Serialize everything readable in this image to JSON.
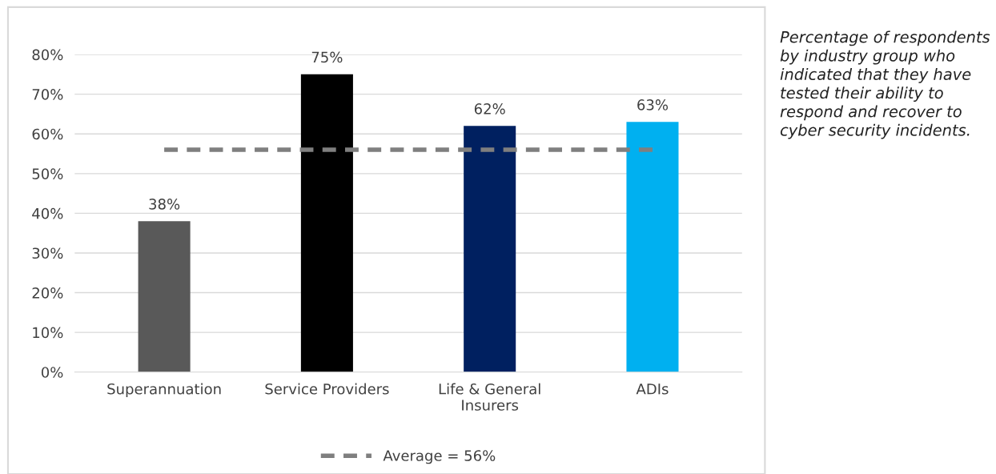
{
  "chart_data": {
    "type": "bar",
    "categories": [
      "Superannuation",
      "Service Providers",
      "Life & General\nInsurers",
      "ADIs"
    ],
    "series": [
      {
        "colors": [
          "#595959",
          "#000000",
          "#002060",
          "#00b0f0"
        ],
        "values": [
          38,
          75,
          62,
          63
        ],
        "value_labels": [
          "38%",
          "75%",
          "62%",
          "63%"
        ]
      },
      {
        "type": "line",
        "name": "Average = 56%",
        "color": "#7f7f7f",
        "values": [
          56,
          56,
          56,
          56
        ],
        "line_style": "dashed"
      }
    ],
    "ylim": [
      0,
      80
    ],
    "yticks": [
      {
        "value": 0,
        "label": "0%"
      },
      {
        "value": 10,
        "label": "10%"
      },
      {
        "value": 20,
        "label": "20%"
      },
      {
        "value": 30,
        "label": "30%"
      },
      {
        "value": 40,
        "label": "40%"
      },
      {
        "value": 50,
        "label": "50%"
      },
      {
        "value": 60,
        "label": "60%"
      },
      {
        "value": 70,
        "label": "70%"
      },
      {
        "value": 80,
        "label": "80%"
      }
    ],
    "grid": "y",
    "legend": "bottom",
    "annotations": [
      "Percentage of respondents by industry group who indicated that they have tested their ability to respond and recover to cyber security incidents."
    ]
  }
}
